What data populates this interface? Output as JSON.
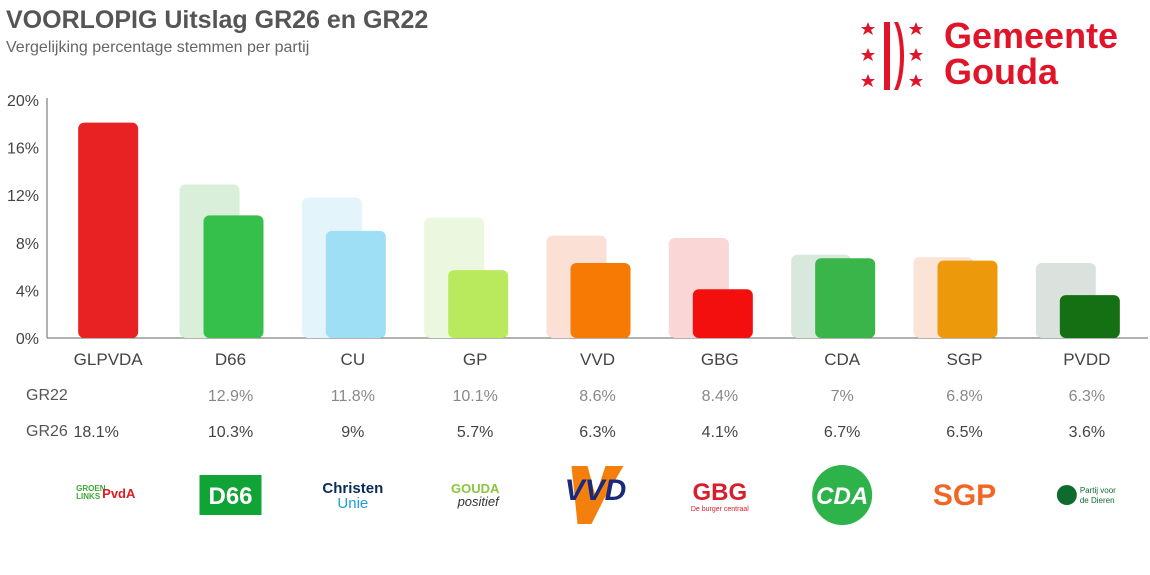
{
  "header": {
    "title": "VOORLOPIG Uitslag GR26 en GR22",
    "subtitle": "Vergelijking percentage stemmen per partij"
  },
  "brand": {
    "logo_text_line1": "Gemeente",
    "logo_text_line2": "Gouda",
    "color": "#e0152a"
  },
  "chart_data": {
    "type": "bar",
    "title": "VOORLOPIG Uitslag GR26 en GR22",
    "subtitle": "Vergelijking percentage stemmen per partij",
    "xlabel": "",
    "ylabel": "",
    "ylim": [
      0,
      20
    ],
    "yticks": [
      "0%",
      "4%",
      "8%",
      "12%",
      "16%",
      "20%"
    ],
    "ytick_values": [
      0,
      4,
      8,
      12,
      16,
      20
    ],
    "grid": false,
    "categories": [
      "GLPVDA",
      "D66",
      "CU",
      "GP",
      "VVD",
      "GBG",
      "CDA",
      "SGP",
      "PVDD"
    ],
    "series": [
      {
        "name": "GR22",
        "values": [
          null,
          12.9,
          11.8,
          10.1,
          8.6,
          8.4,
          7,
          6.8,
          6.3
        ],
        "labels": [
          "",
          "12.9%",
          "11.8%",
          "10.1%",
          "8.6%",
          "8.4%",
          "7%",
          "6.8%",
          "6.3%"
        ],
        "colors": [
          "#f3f3f3",
          "#d9efd9",
          "#e3f4fb",
          "#ecf7e0",
          "#fbe0d6",
          "#fbd6d6",
          "#d9e8dc",
          "#fbe4d6",
          "#dbe2de"
        ]
      },
      {
        "name": "GR26",
        "values": [
          18.1,
          10.3,
          9,
          5.7,
          6.3,
          4.1,
          6.7,
          6.5,
          3.6
        ],
        "labels": [
          "18.1%",
          "10.3%",
          "9%",
          "5.7%",
          "6.3%",
          "4.1%",
          "6.7%",
          "6.5%",
          "3.6%"
        ],
        "colors": [
          "#e82222",
          "#35c04b",
          "#9fdff5",
          "#b9ea5e",
          "#f77a04",
          "#f40f0f",
          "#3ab549",
          "#ec9a0c",
          "#147012"
        ]
      }
    ]
  },
  "party_logos": [
    {
      "name": "groenlinks-pvda",
      "text_a": "GROEN LINKS",
      "text_b": "PvdA",
      "color": "#e01a22",
      "color2": "#3aaa35"
    },
    {
      "name": "d66",
      "text": "D66",
      "bg": "#10a336",
      "fg": "#ffffff"
    },
    {
      "name": "christenunie",
      "text_a": "Christen",
      "text_b": "Unie",
      "color": "#0a2a5a",
      "color2": "#1aa0d8"
    },
    {
      "name": "gouda-positief",
      "text_a": "GOUDA",
      "text_b": "positief",
      "color": "#8cc63f",
      "color2": "#333333"
    },
    {
      "name": "vvd",
      "text": "VVD",
      "bg": "#f47f0d",
      "fg": "#1a2a7a"
    },
    {
      "name": "gbg",
      "text_a": "GBG",
      "text_b": "De burger centraal",
      "color": "#d81e2c"
    },
    {
      "name": "cda",
      "text": "CDA",
      "bg": "#2db34a",
      "fg": "#ffffff"
    },
    {
      "name": "sgp",
      "text": "SGP",
      "color": "#f26522"
    },
    {
      "name": "partij-voor-de-dieren",
      "text_a": "Partij voor",
      "text_b": "de Dieren",
      "color": "#0e6b2d"
    }
  ]
}
